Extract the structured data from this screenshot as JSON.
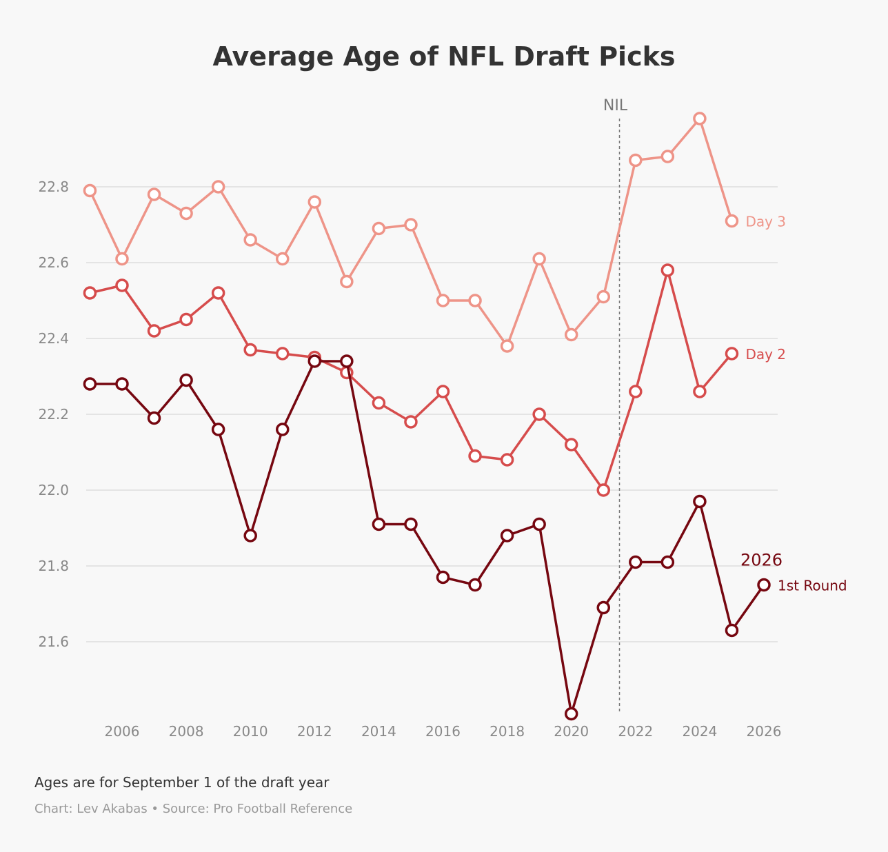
{
  "chart_data": {
    "type": "line",
    "title": "Average Age of NFL Draft Picks",
    "xlabel": "",
    "ylabel": "",
    "ylim": [
      21.4,
      23.0
    ],
    "xlim": [
      2005,
      2026
    ],
    "grid": true,
    "x_ticks": [
      "2006",
      "2008",
      "2010",
      "2012",
      "2014",
      "2016",
      "2018",
      "2020",
      "2022",
      "2024",
      "2026"
    ],
    "y_ticks": [
      "22.8",
      "22.6",
      "22.4",
      "22.2",
      "22.0",
      "21.8",
      "21.6"
    ],
    "annotations": {
      "nil_label": "NIL",
      "nil_year": 2021.5,
      "year_label": "2026"
    },
    "series": [
      {
        "name": "Day 3",
        "color": "#ee9488",
        "x": [
          2005,
          2006,
          2007,
          2008,
          2009,
          2010,
          2011,
          2012,
          2013,
          2014,
          2015,
          2016,
          2017,
          2018,
          2019,
          2020,
          2021,
          2022,
          2023,
          2024,
          2025
        ],
        "values": [
          22.79,
          22.61,
          22.78,
          22.73,
          22.8,
          22.66,
          22.61,
          22.76,
          22.55,
          22.69,
          22.7,
          22.5,
          22.5,
          22.38,
          22.61,
          22.41,
          22.51,
          22.87,
          22.88,
          22.98,
          22.71
        ]
      },
      {
        "name": "Day 2",
        "color": "#d64c4c",
        "x": [
          2005,
          2006,
          2007,
          2008,
          2009,
          2010,
          2011,
          2012,
          2013,
          2014,
          2015,
          2016,
          2017,
          2018,
          2019,
          2020,
          2021,
          2022,
          2023,
          2024,
          2025
        ],
        "values": [
          22.52,
          22.54,
          22.42,
          22.45,
          22.52,
          22.37,
          22.36,
          22.35,
          22.31,
          22.23,
          22.18,
          22.26,
          22.09,
          22.08,
          22.2,
          22.12,
          22.0,
          22.26,
          22.58,
          22.26,
          22.36
        ]
      },
      {
        "name": "1st Round",
        "color": "#760710",
        "x": [
          2005,
          2006,
          2007,
          2008,
          2009,
          2010,
          2011,
          2012,
          2013,
          2014,
          2015,
          2016,
          2017,
          2018,
          2019,
          2020,
          2021,
          2022,
          2023,
          2024,
          2025,
          2026
        ],
        "values": [
          22.28,
          22.28,
          22.19,
          22.29,
          22.16,
          21.88,
          22.16,
          22.34,
          22.34,
          21.91,
          21.91,
          21.77,
          21.75,
          21.88,
          21.91,
          21.41,
          21.69,
          21.81,
          21.81,
          21.97,
          21.63,
          21.75
        ]
      }
    ]
  },
  "footer": {
    "note": "Ages are for September 1 of the draft year",
    "source": "Chart: Lev Akabas • Source: Pro Football Reference"
  }
}
